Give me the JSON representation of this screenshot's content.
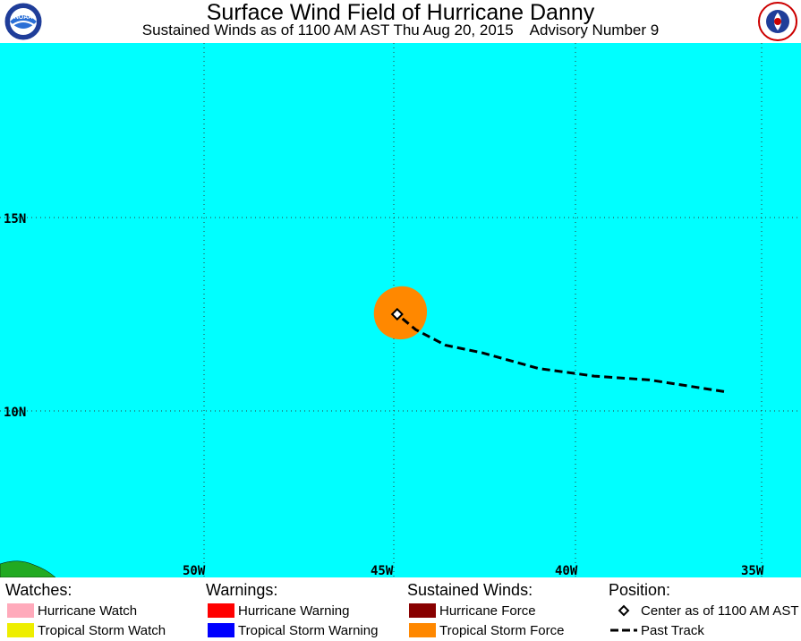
{
  "title": "Surface Wind Field of Hurricane Danny",
  "subtitle": "Sustained Winds as of 1100 AM AST Thu Aug 20, 2015    Advisory Number 9",
  "logos": {
    "left": "NOAA",
    "right": "National Weather Service"
  },
  "map": {
    "colors": {
      "ocean": "#00ffff",
      "land": "#22aa22",
      "storm_force": "#ff8800",
      "grid": "#333333"
    },
    "lat_labels": [
      "15N",
      "10N"
    ],
    "lon_labels": [
      "50W",
      "45W",
      "40W",
      "35W"
    ],
    "storm_center": {
      "lat": 12.5,
      "lon": -44.8
    },
    "past_track": [
      {
        "lat": 10.5,
        "lon": -36.0
      },
      {
        "lat": 10.8,
        "lon": -38.0
      },
      {
        "lat": 10.9,
        "lon": -39.5
      },
      {
        "lat": 11.1,
        "lon": -41.0
      },
      {
        "lat": 11.5,
        "lon": -42.5
      },
      {
        "lat": 11.7,
        "lon": -43.5
      },
      {
        "lat": 12.1,
        "lon": -44.3
      },
      {
        "lat": 12.5,
        "lon": -44.8
      }
    ]
  },
  "legend": {
    "watches": {
      "heading": "Watches:",
      "items": [
        {
          "label": "Hurricane Watch",
          "color": "#ffaabb"
        },
        {
          "label": "Tropical Storm Watch",
          "color": "#eeee00"
        }
      ]
    },
    "warnings": {
      "heading": "Warnings:",
      "items": [
        {
          "label": "Hurricane Warning",
          "color": "#ff0000"
        },
        {
          "label": "Tropical Storm Warning",
          "color": "#0000ff"
        }
      ]
    },
    "winds": {
      "heading": "Sustained Winds:",
      "items": [
        {
          "label": "Hurricane Force",
          "color": "#880000"
        },
        {
          "label": "Tropical Storm Force",
          "color": "#ff8800"
        }
      ]
    },
    "position": {
      "heading": "Position:",
      "items": [
        {
          "label": "Center as of 1100 AM AST",
          "icon": "diamond-icon"
        },
        {
          "label": "Past Track",
          "icon": "dashed-line-icon"
        }
      ]
    }
  }
}
